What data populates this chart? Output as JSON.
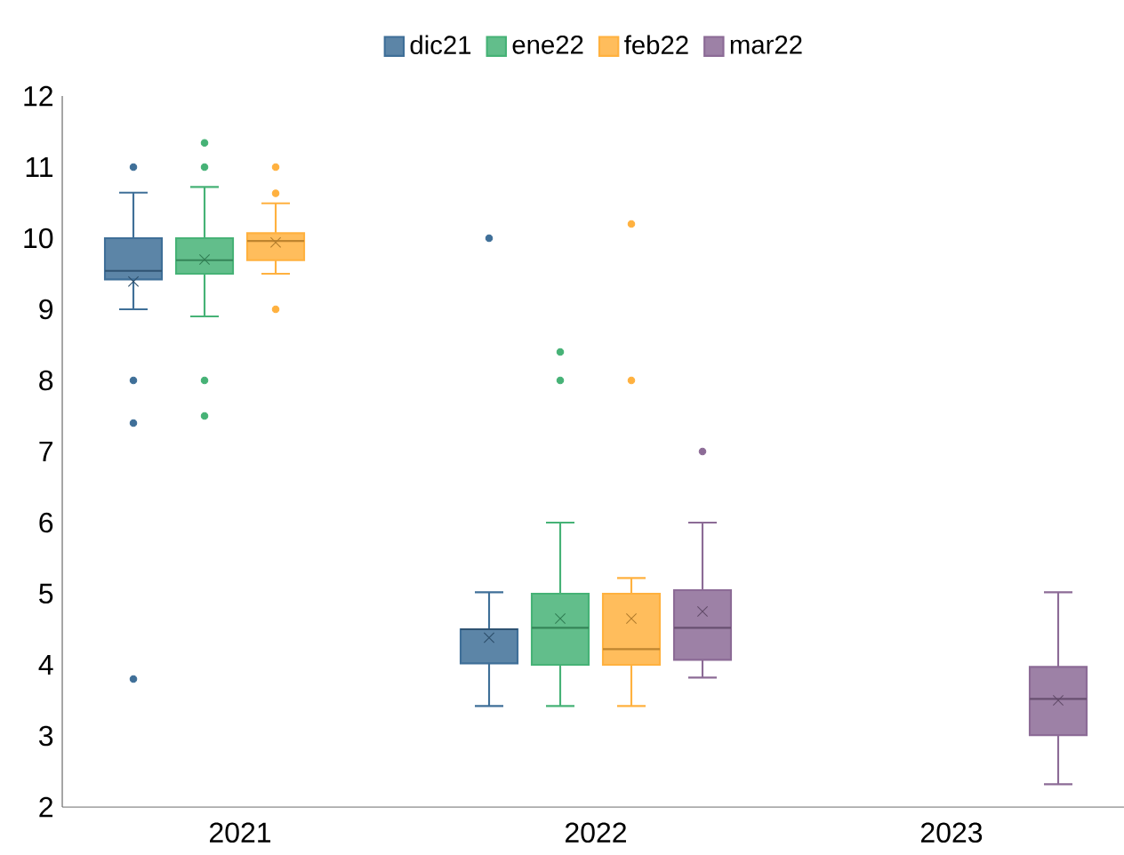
{
  "chart_data": {
    "type": "box",
    "categories": [
      "2021",
      "2022",
      "2023"
    ],
    "ylim": [
      2,
      12
    ],
    "yticks": [
      2,
      3,
      4,
      5,
      6,
      7,
      8,
      9,
      10,
      11,
      12
    ],
    "legend": "top",
    "series": [
      {
        "name": "dic21",
        "color": "#3f6f98",
        "boxes": [
          {
            "low": 9.0,
            "q1": 9.42,
            "median": 9.54,
            "q3": 10.0,
            "high": 10.64,
            "mean": 9.39,
            "outliers": [
              11.0,
              8.0,
              7.4,
              3.8
            ]
          },
          {
            "low": 3.42,
            "q1": 4.02,
            "median": 4.5,
            "q3": 4.5,
            "high": 5.02,
            "mean": 4.38,
            "outliers": [
              10.0
            ]
          },
          null
        ]
      },
      {
        "name": "ene22",
        "color": "#46b276",
        "boxes": [
          {
            "low": 8.9,
            "q1": 9.5,
            "median": 9.69,
            "q3": 10.0,
            "high": 10.72,
            "mean": 9.7,
            "outliers": [
              11.34,
              11.0,
              8.0,
              7.5
            ]
          },
          {
            "low": 3.42,
            "q1": 4.0,
            "median": 4.52,
            "q3": 5.0,
            "high": 6.0,
            "mean": 4.65,
            "outliers": [
              8.4,
              8.0
            ]
          },
          null
        ]
      },
      {
        "name": "feb22",
        "color": "#ffb13f",
        "boxes": [
          {
            "low": 9.5,
            "q1": 9.69,
            "median": 9.96,
            "q3": 10.07,
            "high": 10.49,
            "mean": 9.94,
            "outliers": [
              11.0,
              10.63,
              9.0
            ]
          },
          {
            "low": 3.42,
            "q1": 4.0,
            "median": 4.22,
            "q3": 5.0,
            "high": 5.22,
            "mean": 4.65,
            "outliers": [
              10.2,
              8.0
            ]
          },
          null
        ]
      },
      {
        "name": "mar22",
        "color": "#8c6b96",
        "boxes": [
          null,
          {
            "low": 3.82,
            "q1": 4.07,
            "median": 4.52,
            "q3": 5.05,
            "high": 6.0,
            "mean": 4.75,
            "outliers": [
              7.0
            ]
          },
          {
            "low": 2.32,
            "q1": 3.01,
            "median": 3.52,
            "q3": 3.97,
            "high": 5.02,
            "mean": 3.5
          }
        ]
      }
    ]
  }
}
